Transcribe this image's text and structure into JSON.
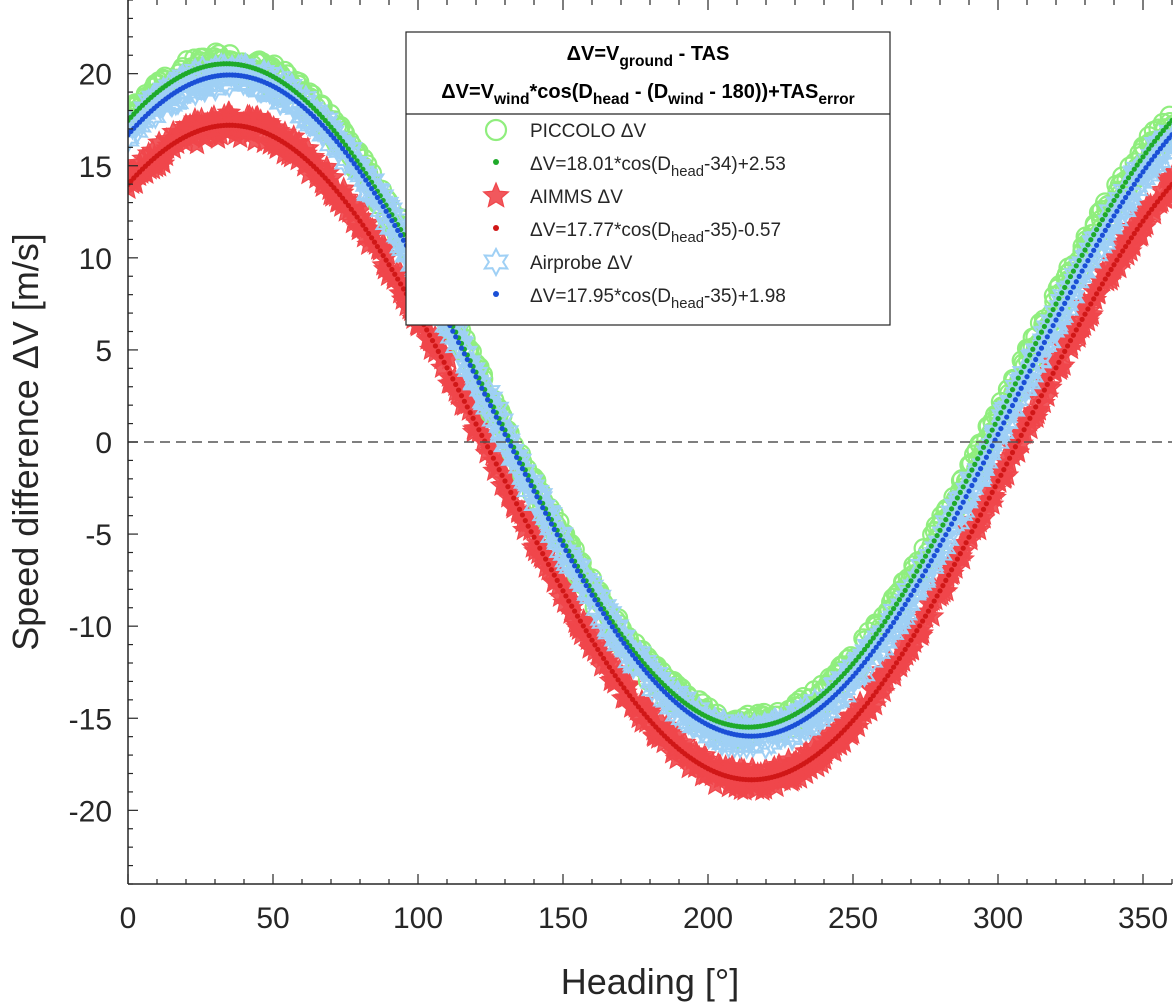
{
  "chart_data": {
    "type": "scatter",
    "title_lines": [
      {
        "parts": [
          {
            "text": "ΔV=V",
            "sub": false
          },
          {
            "text": "ground",
            "sub": true
          },
          {
            "text": " - TAS",
            "sub": false
          }
        ]
      },
      {
        "parts": [
          {
            "text": "ΔV=V",
            "sub": false
          },
          {
            "text": "wind",
            "sub": true
          },
          {
            "text": "*cos(D",
            "sub": false
          },
          {
            "text": "head",
            "sub": true
          },
          {
            "text": " - (D",
            "sub": false
          },
          {
            "text": "wind",
            "sub": true
          },
          {
            "text": " - 180))+TAS",
            "sub": false
          },
          {
            "text": "error",
            "sub": true
          }
        ]
      }
    ],
    "xlabel": "Heading [°]",
    "ylabel": "Speed difference ΔV [m/s]",
    "xlim": [
      0,
      360
    ],
    "ylim": [
      -24,
      24
    ],
    "xticks": [
      0,
      50,
      100,
      150,
      200,
      250,
      300,
      350
    ],
    "yticks": [
      -20,
      -15,
      -10,
      -5,
      0,
      5,
      10,
      15,
      20
    ],
    "ytick_labels": [
      "-20",
      "-15",
      "-10",
      "-5",
      "0",
      "5",
      "10",
      "15",
      "20"
    ],
    "zero_line": true,
    "grid": false,
    "legend_position": "top-center",
    "series": [
      {
        "name": "PICCOLO ΔV",
        "kind": "observed",
        "marker": "circle",
        "color": "#90ee7e",
        "amplitude": 18.01,
        "phase": 34,
        "offset": 2.53,
        "scatter": 0.7
      },
      {
        "name": "AIMMS ΔV",
        "kind": "observed",
        "marker": "star5",
        "color": "#f0464b",
        "amplitude": 17.77,
        "phase": 35,
        "offset": -0.57,
        "scatter": 0.7
      },
      {
        "name": "Airprobe ΔV",
        "kind": "observed",
        "marker": "star6",
        "color": "#9fd0f5",
        "amplitude": 17.95,
        "phase": 35,
        "offset": 1.98,
        "scatter": 0.7
      }
    ],
    "fits": [
      {
        "label_parts": [
          {
            "text": "ΔV=18.01*cos(D",
            "sub": false
          },
          {
            "text": "head",
            "sub": true
          },
          {
            "text": "-34)+2.53",
            "sub": false
          }
        ],
        "color": "#1faa2a",
        "amplitude": 18.01,
        "phase": 34,
        "offset": 2.53
      },
      {
        "label_parts": [
          {
            "text": "ΔV=17.77*cos(D",
            "sub": false
          },
          {
            "text": "head",
            "sub": true
          },
          {
            "text": "-35)-0.57",
            "sub": false
          }
        ],
        "color": "#d01717",
        "amplitude": 17.77,
        "phase": 35,
        "offset": -0.57
      },
      {
        "label_parts": [
          {
            "text": "ΔV=17.95*cos(D",
            "sub": false
          },
          {
            "text": "head",
            "sub": true
          },
          {
            "text": "-35)+1.98",
            "sub": false
          }
        ],
        "color": "#1a4fd6",
        "amplitude": 17.95,
        "phase": 35,
        "offset": 1.98
      }
    ]
  }
}
